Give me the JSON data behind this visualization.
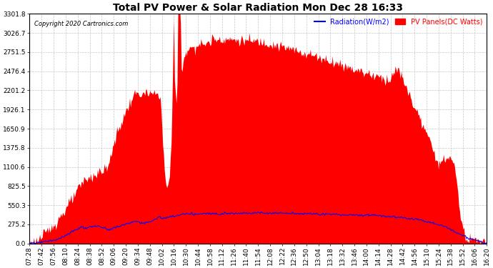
{
  "title": "Total PV Power & Solar Radiation Mon Dec 28 16:33",
  "copyright": "Copyright 2020 Cartronics.com",
  "legend_radiation": "Radiation(W/m2)",
  "legend_pv": "PV Panels(DC Watts)",
  "y_ticks": [
    0.0,
    275.2,
    550.3,
    825.5,
    1100.6,
    1375.8,
    1650.9,
    1926.1,
    2201.2,
    2476.4,
    2751.5,
    3026.7,
    3301.8
  ],
  "y_max": 3301.8,
  "background_color": "#ffffff",
  "grid_color": "#c0c0c0",
  "pv_color": "#ff0000",
  "radiation_color": "#0000ff",
  "title_color": "#000000",
  "copyright_color": "#000000",
  "x_labels": [
    "07:28",
    "07:42",
    "07:56",
    "08:10",
    "08:24",
    "08:38",
    "08:52",
    "09:06",
    "09:20",
    "09:34",
    "09:48",
    "10:02",
    "10:16",
    "10:30",
    "10:44",
    "10:58",
    "11:12",
    "11:26",
    "11:40",
    "11:54",
    "12:08",
    "12:22",
    "12:36",
    "12:50",
    "13:04",
    "13:18",
    "13:32",
    "13:46",
    "14:00",
    "14:14",
    "14:28",
    "14:42",
    "14:56",
    "15:10",
    "15:24",
    "15:38",
    "15:52",
    "16:06",
    "16:20"
  ]
}
